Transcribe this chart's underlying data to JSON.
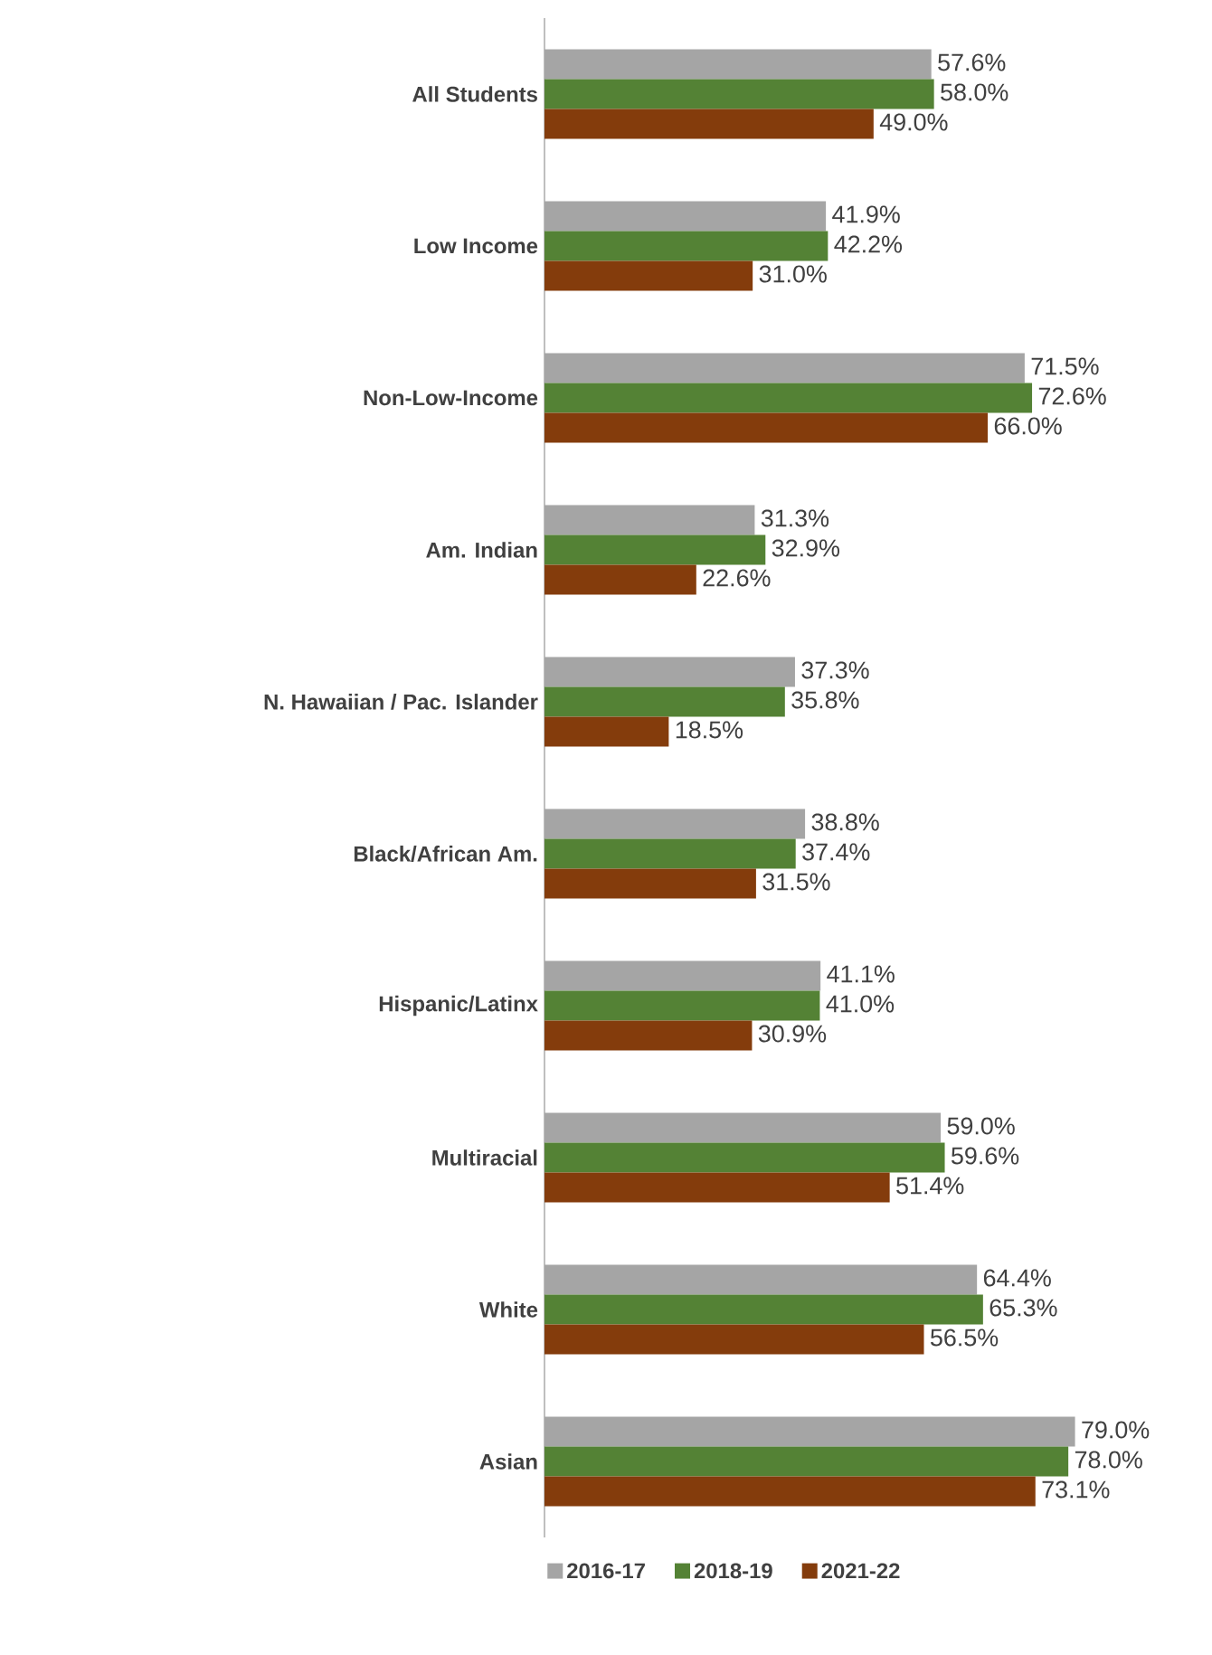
{
  "chart_data": {
    "type": "bar",
    "orientation": "horizontal",
    "categories": [
      "All Students",
      "Low Income",
      "Non-Low-Income",
      "Am. Indian",
      "N. Hawaiian / Pac. Islander",
      "Black/African Am.",
      "Hispanic/Latinx",
      "Multiracial",
      "White",
      "Asian"
    ],
    "series": [
      {
        "name": "2016-17",
        "color": "#a5a5a5",
        "values": [
          57.6,
          41.9,
          71.5,
          31.3,
          37.3,
          38.8,
          41.1,
          59.0,
          64.4,
          79.0
        ],
        "value_labels": [
          "57.6%",
          "41.9%",
          "71.5%",
          "31.3%",
          "37.3%",
          "38.8%",
          "41.1%",
          "59.0%",
          "64.4%",
          "79.0%"
        ]
      },
      {
        "name": "2018-19",
        "color": "#548235",
        "values": [
          58.0,
          42.2,
          72.6,
          32.9,
          35.8,
          37.4,
          41.0,
          59.6,
          65.3,
          78.0
        ],
        "value_labels": [
          "58.0%",
          "42.2%",
          "72.6%",
          "32.9%",
          "35.8%",
          "37.4%",
          "41.0%",
          "59.6%",
          "65.3%",
          "78.0%"
        ]
      },
      {
        "name": "2021-22",
        "color": "#843c0c",
        "values": [
          49.0,
          31.0,
          66.0,
          22.6,
          18.5,
          31.5,
          30.9,
          51.4,
          56.5,
          73.1
        ],
        "value_labels": [
          "49.0%",
          "31.0%",
          "66.0%",
          "22.6%",
          "18.5%",
          "31.5%",
          "30.9%",
          "51.4%",
          "56.5%",
          "73.1%"
        ]
      }
    ],
    "tick_labels": "y",
    "legend": "bottom"
  }
}
